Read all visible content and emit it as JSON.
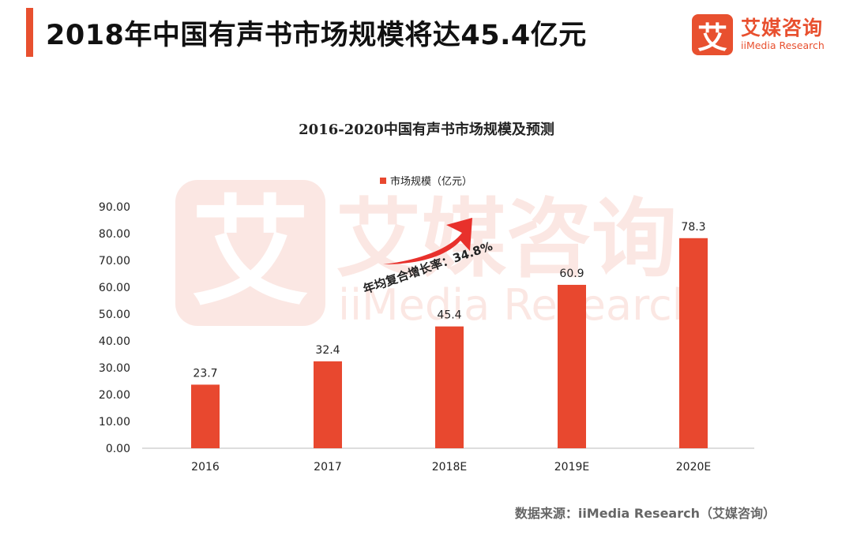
{
  "header": {
    "title": "2018年中国有声书市场规模将达45.4亿元",
    "logo_cn": "艾媒咨询",
    "logo_en": "iiMedia Research",
    "logo_mark": "艾"
  },
  "watermark": {
    "mark": "艾",
    "cn": "艾媒咨询",
    "en": "iiMedia Research"
  },
  "colors": {
    "accent": "#e8502f",
    "bar": "#e8482f",
    "arrow": "#e8312c"
  },
  "chart_data": {
    "type": "bar",
    "title": "2016-2020中国有声书市场规模及预测",
    "categories": [
      "2016",
      "2017",
      "2018E",
      "2019E",
      "2020E"
    ],
    "series": [
      {
        "name": "市场规模（亿元）",
        "values": [
          23.7,
          32.4,
          45.4,
          60.9,
          78.3
        ]
      }
    ],
    "data_labels": [
      "23.7",
      "32.4",
      "45.4",
      "60.9",
      "78.3"
    ],
    "ylim": [
      0,
      90
    ],
    "yticks": [
      "0.00",
      "10.00",
      "20.00",
      "30.00",
      "40.00",
      "50.00",
      "60.00",
      "70.00",
      "80.00",
      "90.00"
    ],
    "grid": false,
    "legend": "top-center",
    "annotation": "年均复合增长率：34.8%"
  },
  "source": "数据来源：iiMedia Research（艾媒咨询）"
}
